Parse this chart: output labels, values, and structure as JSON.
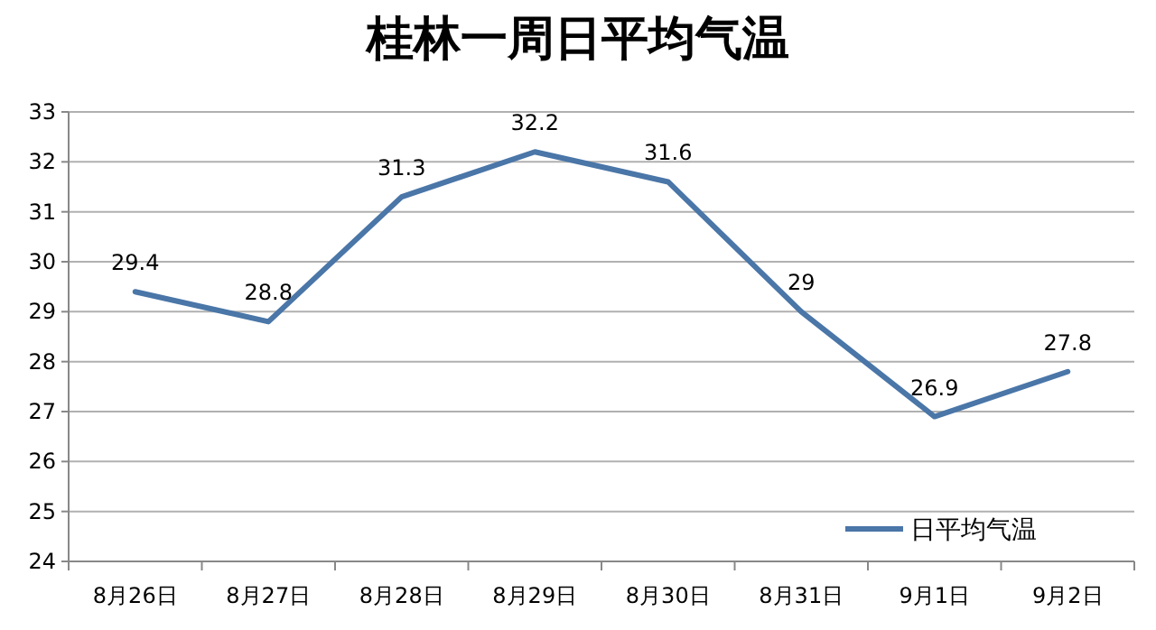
{
  "chart_data": {
    "type": "line",
    "title": "桂林一周日平均气温",
    "categories": [
      "8月26日",
      "8月27日",
      "8月28日",
      "8月29日",
      "8月30日",
      "8月31日",
      "9月1日",
      "9月2日"
    ],
    "series": [
      {
        "name": "日平均气温",
        "color": "#4a76a8",
        "values": [
          29.4,
          28.8,
          31.3,
          32.2,
          31.6,
          29,
          26.9,
          27.8
        ]
      }
    ],
    "ylim": [
      24,
      33
    ],
    "yticks": [
      24,
      25,
      26,
      27,
      28,
      29,
      30,
      31,
      32,
      33
    ],
    "grid": "y",
    "legend": "bottom right",
    "data_labels": true
  }
}
